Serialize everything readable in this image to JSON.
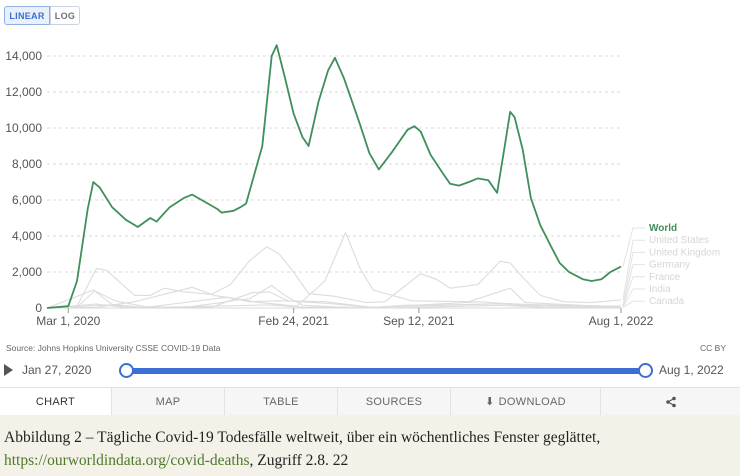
{
  "controls": {
    "linear_label": "LINEAR",
    "log_label": "LOG"
  },
  "chart_data": {
    "type": "line",
    "x_ticks": [
      "Mar 1, 2020",
      "Feb 24, 2021",
      "Sep 12, 2021",
      "Aug 1, 2022"
    ],
    "y_ticks": [
      "0",
      "2,000",
      "4,000",
      "6,000",
      "8,000",
      "10,000",
      "12,000",
      "14,000"
    ],
    "ylim": [
      0,
      15000
    ],
    "grid": "horizontal dashed",
    "legend_position": "right",
    "colors": {
      "World": "#3f8f5a",
      "others": "#dcdcdc"
    },
    "series": [
      {
        "name": "World",
        "points": [
          [
            "2020-01-27",
            0
          ],
          [
            "2020-03-01",
            100
          ],
          [
            "2020-03-15",
            1500
          ],
          [
            "2020-04-01",
            5500
          ],
          [
            "2020-04-10",
            7000
          ],
          [
            "2020-04-20",
            6700
          ],
          [
            "2020-05-10",
            5600
          ],
          [
            "2020-06-01",
            4900
          ],
          [
            "2020-06-20",
            4500
          ],
          [
            "2020-07-10",
            5000
          ],
          [
            "2020-07-20",
            4800
          ],
          [
            "2020-08-10",
            5600
          ],
          [
            "2020-09-01",
            6100
          ],
          [
            "2020-09-15",
            6300
          ],
          [
            "2020-10-10",
            5800
          ],
          [
            "2020-10-25",
            5500
          ],
          [
            "2020-11-01",
            5300
          ],
          [
            "2020-11-20",
            5400
          ],
          [
            "2020-12-01",
            5600
          ],
          [
            "2020-12-10",
            5800
          ],
          [
            "2021-01-05",
            9000
          ],
          [
            "2021-01-20",
            14000
          ],
          [
            "2021-01-28",
            14600
          ],
          [
            "2021-02-10",
            12800
          ],
          [
            "2021-02-24",
            10800
          ],
          [
            "2021-03-10",
            9500
          ],
          [
            "2021-03-20",
            9000
          ],
          [
            "2021-04-05",
            11500
          ],
          [
            "2021-04-20",
            13200
          ],
          [
            "2021-05-01",
            13900
          ],
          [
            "2021-05-15",
            12800
          ],
          [
            "2021-05-25",
            11800
          ],
          [
            "2021-06-10",
            10200
          ],
          [
            "2021-06-25",
            8600
          ],
          [
            "2021-07-10",
            7700
          ],
          [
            "2021-08-01",
            8700
          ],
          [
            "2021-08-25",
            9900
          ],
          [
            "2021-09-05",
            10100
          ],
          [
            "2021-09-15",
            9800
          ],
          [
            "2021-10-01",
            8500
          ],
          [
            "2021-10-20",
            7500
          ],
          [
            "2021-11-01",
            6900
          ],
          [
            "2021-11-15",
            6800
          ],
          [
            "2021-12-01",
            7000
          ],
          [
            "2021-12-15",
            7200
          ],
          [
            "2022-01-01",
            7100
          ],
          [
            "2022-01-15",
            6400
          ],
          [
            "2022-01-25",
            8500
          ],
          [
            "2022-02-05",
            10900
          ],
          [
            "2022-02-12",
            10600
          ],
          [
            "2022-02-25",
            8800
          ],
          [
            "2022-03-10",
            6100
          ],
          [
            "2022-03-25",
            4600
          ],
          [
            "2022-04-10",
            3500
          ],
          [
            "2022-04-25",
            2500
          ],
          [
            "2022-05-10",
            2000
          ],
          [
            "2022-06-01",
            1600
          ],
          [
            "2022-06-15",
            1500
          ],
          [
            "2022-07-01",
            1600
          ],
          [
            "2022-07-15",
            2000
          ],
          [
            "2022-08-01",
            2300
          ]
        ]
      },
      {
        "name": "United States",
        "points": [
          [
            "2020-01-27",
            0
          ],
          [
            "2020-03-15",
            100
          ],
          [
            "2020-04-15",
            2200
          ],
          [
            "2020-05-01",
            2100
          ],
          [
            "2020-06-15",
            700
          ],
          [
            "2020-07-10",
            700
          ],
          [
            "2020-08-01",
            1100
          ],
          [
            "2020-09-01",
            900
          ],
          [
            "2020-10-15",
            750
          ],
          [
            "2020-11-15",
            1300
          ],
          [
            "2020-12-15",
            2600
          ],
          [
            "2021-01-12",
            3400
          ],
          [
            "2021-02-01",
            3000
          ],
          [
            "2021-02-24",
            2000
          ],
          [
            "2021-03-20",
            800
          ],
          [
            "2021-05-01",
            650
          ],
          [
            "2021-06-20",
            300
          ],
          [
            "2021-07-20",
            350
          ],
          [
            "2021-08-20",
            1200
          ],
          [
            "2021-09-15",
            1900
          ],
          [
            "2021-10-10",
            1600
          ],
          [
            "2021-11-01",
            1100
          ],
          [
            "2021-12-15",
            1300
          ],
          [
            "2022-01-20",
            2600
          ],
          [
            "2022-02-05",
            2500
          ],
          [
            "2022-02-25",
            1700
          ],
          [
            "2022-03-25",
            700
          ],
          [
            "2022-05-01",
            350
          ],
          [
            "2022-06-15",
            300
          ],
          [
            "2022-08-01",
            450
          ]
        ]
      },
      {
        "name": "United Kingdom",
        "points": [
          [
            "2020-01-27",
            0
          ],
          [
            "2020-03-15",
            50
          ],
          [
            "2020-04-12",
            950
          ],
          [
            "2020-05-15",
            400
          ],
          [
            "2020-07-01",
            80
          ],
          [
            "2020-09-01",
            20
          ],
          [
            "2020-11-01",
            300
          ],
          [
            "2020-11-25",
            450
          ],
          [
            "2020-12-15",
            500
          ],
          [
            "2021-01-20",
            1250
          ],
          [
            "2021-02-10",
            700
          ],
          [
            "2021-03-10",
            150
          ],
          [
            "2021-06-01",
            10
          ],
          [
            "2021-08-15",
            100
          ],
          [
            "2021-10-20",
            150
          ],
          [
            "2022-01-15",
            250
          ],
          [
            "2022-03-01",
            130
          ],
          [
            "2022-08-01",
            100
          ]
        ]
      },
      {
        "name": "Germany",
        "points": [
          [
            "2020-01-27",
            0
          ],
          [
            "2020-04-15",
            220
          ],
          [
            "2020-06-01",
            30
          ],
          [
            "2020-10-15",
            40
          ],
          [
            "2020-12-20",
            850
          ],
          [
            "2021-01-15",
            900
          ],
          [
            "2021-02-15",
            400
          ],
          [
            "2021-04-20",
            250
          ],
          [
            "2021-07-01",
            30
          ],
          [
            "2021-11-25",
            300
          ],
          [
            "2021-12-15",
            350
          ],
          [
            "2022-02-15",
            200
          ],
          [
            "2022-05-01",
            150
          ],
          [
            "2022-08-01",
            100
          ]
        ]
      },
      {
        "name": "France",
        "points": [
          [
            "2020-01-27",
            0
          ],
          [
            "2020-04-10",
            1000
          ],
          [
            "2020-05-10",
            200
          ],
          [
            "2020-07-01",
            30
          ],
          [
            "2020-11-10",
            600
          ],
          [
            "2020-12-15",
            350
          ],
          [
            "2021-02-01",
            400
          ],
          [
            "2021-04-15",
            350
          ],
          [
            "2021-07-01",
            30
          ],
          [
            "2021-08-20",
            150
          ],
          [
            "2021-12-15",
            200
          ],
          [
            "2022-02-01",
            250
          ],
          [
            "2022-05-01",
            100
          ],
          [
            "2022-08-01",
            80
          ]
        ]
      },
      {
        "name": "India",
        "points": [
          [
            "2020-01-27",
            0
          ],
          [
            "2020-04-15",
            40
          ],
          [
            "2020-06-15",
            350
          ],
          [
            "2020-09-15",
            1150
          ],
          [
            "2020-10-20",
            700
          ],
          [
            "2021-01-01",
            300
          ],
          [
            "2021-03-01",
            100
          ],
          [
            "2021-04-15",
            1500
          ],
          [
            "2021-05-18",
            4200
          ],
          [
            "2021-06-10",
            2200
          ],
          [
            "2021-07-01",
            1000
          ],
          [
            "2021-09-01",
            400
          ],
          [
            "2021-12-01",
            350
          ],
          [
            "2022-02-05",
            1100
          ],
          [
            "2022-03-01",
            300
          ],
          [
            "2022-08-01",
            40
          ]
        ]
      },
      {
        "name": "Canada",
        "points": [
          [
            "2020-01-27",
            0
          ],
          [
            "2020-05-01",
            170
          ],
          [
            "2020-07-01",
            20
          ],
          [
            "2020-12-20",
            150
          ],
          [
            "2021-01-15",
            170
          ],
          [
            "2021-03-15",
            40
          ],
          [
            "2021-05-01",
            50
          ],
          [
            "2021-08-01",
            10
          ],
          [
            "2022-01-20",
            150
          ],
          [
            "2022-04-01",
            40
          ],
          [
            "2022-08-01",
            40
          ]
        ]
      }
    ]
  },
  "footer": {
    "source": "Source: Johns Hopkins University CSSE COVID-19 Data",
    "license": "CC BY"
  },
  "timeline": {
    "start_label": "Jan 27, 2020",
    "end_label": "Aug 1, 2022"
  },
  "tabs": {
    "chart": "CHART",
    "map": "MAP",
    "table": "TABLE",
    "sources": "SOURCES",
    "download": "DOWNLOAD"
  },
  "caption": {
    "text": "Abbildung 2 – Tägliche Covid-19 Todesfälle weltweit, über ein wöchentliches Fenster geglättet,",
    "link": "https://ourworldindata.org/covid-deaths",
    "suffix": ", Zugriff 2.8. 22"
  }
}
